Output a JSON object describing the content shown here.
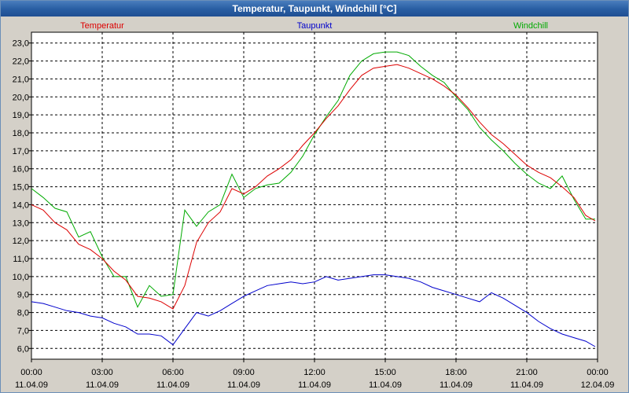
{
  "window": {
    "title": "Temperatur, Taupunkt, Windchill [°C]"
  },
  "colors": {
    "background": "#d4d0c8",
    "plot_background": "#ffffff",
    "grid": "#000000"
  },
  "chart_data": {
    "type": "line",
    "title": "Temperatur, Taupunkt, Windchill [°C]",
    "xlabel": "",
    "ylabel": "",
    "ylim": [
      5.4,
      23.6
    ],
    "xlim_hours": [
      0,
      24
    ],
    "grid": true,
    "legend_position": "top",
    "y_ticks": [
      "6,0",
      "7,0",
      "8,0",
      "9,0",
      "10,0",
      "11,0",
      "12,0",
      "13,0",
      "14,0",
      "15,0",
      "16,0",
      "17,0",
      "18,0",
      "19,0",
      "20,0",
      "21,0",
      "22,0",
      "23,0"
    ],
    "y_tick_values": [
      6,
      7,
      8,
      9,
      10,
      11,
      12,
      13,
      14,
      15,
      16,
      17,
      18,
      19,
      20,
      21,
      22,
      23
    ],
    "x_ticks": [
      {
        "time": "00:00",
        "date": "11.04.09"
      },
      {
        "time": "03:00",
        "date": "11.04.09"
      },
      {
        "time": "06:00",
        "date": "11.04.09"
      },
      {
        "time": "09:00",
        "date": "11.04.09"
      },
      {
        "time": "12:00",
        "date": "11.04.09"
      },
      {
        "time": "15:00",
        "date": "11.04.09"
      },
      {
        "time": "18:00",
        "date": "11.04.09"
      },
      {
        "time": "21:00",
        "date": "11.04.09"
      },
      {
        "time": "00:00",
        "date": "12.04.09"
      }
    ],
    "x_tick_hours": [
      0,
      3,
      6,
      9,
      12,
      15,
      18,
      21,
      24
    ],
    "series": [
      {
        "name": "Temperatur",
        "color": "#dd0000",
        "x": [
          0,
          0.5,
          1,
          1.5,
          2,
          2.5,
          3,
          3.5,
          4,
          4.5,
          5,
          5.5,
          6,
          6.5,
          7,
          7.5,
          8,
          8.5,
          9,
          9.5,
          10,
          10.5,
          11,
          11.5,
          12,
          12.5,
          13,
          13.5,
          14,
          14.5,
          15,
          15.5,
          16,
          16.5,
          17,
          17.5,
          18,
          18.5,
          19,
          19.5,
          20,
          20.5,
          21,
          21.5,
          22,
          22.5,
          23,
          23.5,
          23.9
        ],
        "y": [
          14.0,
          13.7,
          13.0,
          12.6,
          11.8,
          11.5,
          11.0,
          10.3,
          9.8,
          8.9,
          8.8,
          8.6,
          8.2,
          9.5,
          11.9,
          13.0,
          13.6,
          14.9,
          14.6,
          15.0,
          15.6,
          16.0,
          16.5,
          17.3,
          18.0,
          18.8,
          19.5,
          20.4,
          21.2,
          21.6,
          21.7,
          21.8,
          21.6,
          21.3,
          21.0,
          20.6,
          20.1,
          19.4,
          18.6,
          17.9,
          17.4,
          16.8,
          16.2,
          15.8,
          15.5,
          15.0,
          14.4,
          13.4,
          13.1
        ]
      },
      {
        "name": "Taupunkt",
        "color": "#0000cc",
        "x": [
          0,
          0.5,
          1,
          1.5,
          2,
          2.5,
          3,
          3.5,
          4,
          4.5,
          5,
          5.5,
          6,
          6.5,
          7,
          7.5,
          8,
          8.5,
          9,
          9.5,
          10,
          10.5,
          11,
          11.5,
          12,
          12.5,
          13,
          13.5,
          14,
          14.5,
          15,
          15.5,
          16,
          16.5,
          17,
          17.5,
          18,
          18.5,
          19,
          19.5,
          20,
          20.5,
          21,
          21.5,
          22,
          22.5,
          23,
          23.5,
          23.9
        ],
        "y": [
          8.6,
          8.5,
          8.3,
          8.1,
          8.0,
          7.8,
          7.7,
          7.4,
          7.2,
          6.8,
          6.8,
          6.7,
          6.2,
          7.1,
          8.0,
          7.8,
          8.1,
          8.5,
          8.9,
          9.2,
          9.5,
          9.6,
          9.7,
          9.6,
          9.7,
          10.0,
          9.8,
          9.9,
          10.0,
          10.1,
          10.1,
          10.0,
          9.9,
          9.7,
          9.4,
          9.2,
          9.0,
          8.8,
          8.6,
          9.1,
          8.8,
          8.4,
          8.0,
          7.5,
          7.1,
          6.8,
          6.6,
          6.4,
          6.1
        ]
      },
      {
        "name": "Windchill",
        "color": "#00aa00",
        "x": [
          0,
          0.5,
          1,
          1.5,
          2,
          2.5,
          3,
          3.5,
          4,
          4.5,
          5,
          5.5,
          6,
          6.5,
          7,
          7.5,
          8,
          8.5,
          9,
          9.5,
          10,
          10.5,
          11,
          11.5,
          12,
          12.5,
          13,
          13.5,
          14,
          14.5,
          15,
          15.5,
          16,
          16.5,
          17,
          17.5,
          18,
          18.5,
          19,
          19.5,
          20,
          20.5,
          21,
          21.5,
          22,
          22.5,
          23,
          23.5,
          23.9
        ],
        "y": [
          14.9,
          14.4,
          13.8,
          13.6,
          12.2,
          12.5,
          11.1,
          10.0,
          10.0,
          8.3,
          9.5,
          8.9,
          9.0,
          13.7,
          12.8,
          13.6,
          14.0,
          15.7,
          14.4,
          14.9,
          15.1,
          15.2,
          15.8,
          16.7,
          17.9,
          18.9,
          19.8,
          21.2,
          22.0,
          22.4,
          22.5,
          22.5,
          22.3,
          21.7,
          21.2,
          20.8,
          20.0,
          19.3,
          18.3,
          17.6,
          17.0,
          16.3,
          15.7,
          15.2,
          14.9,
          15.6,
          14.3,
          13.2,
          13.2
        ]
      }
    ]
  }
}
